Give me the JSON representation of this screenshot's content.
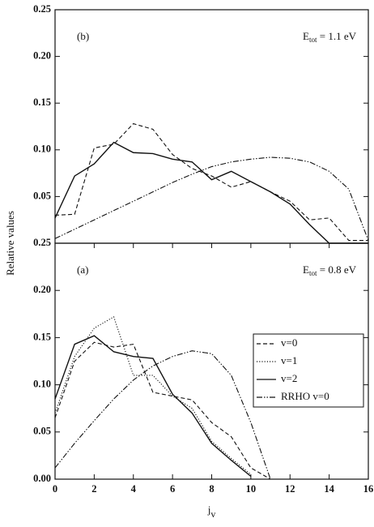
{
  "chart_data": [
    {
      "type": "line",
      "panel": "(b)",
      "annotation": {
        "text": "E",
        "sub": "tot",
        "rest": " = 1.1 eV"
      },
      "x": [
        0,
        1,
        2,
        3,
        4,
        5,
        6,
        7,
        8,
        9,
        10,
        11,
        12,
        13,
        14,
        15,
        16
      ],
      "xlim": [
        0,
        16
      ],
      "ylim": [
        0,
        0.25
      ],
      "yticks": [
        0.05,
        {
          "value": 0.1,
          "label": "0.10"
        },
        0.15,
        {
          "value": 0.2,
          "label": "0.20"
        },
        0.25
      ],
      "series": [
        {
          "name": "v=0",
          "color": "#111",
          "style": "dashed",
          "values": [
            0.03,
            0.031,
            0.102,
            0.106,
            0.128,
            0.122,
            0.095,
            0.08,
            0.072,
            0.06,
            0.066,
            0.055,
            0.045,
            0.025,
            0.027,
            0.003,
            0.003
          ]
        },
        {
          "name": "v=2",
          "color": "#111",
          "style": "solid",
          "values": [
            0.027,
            0.072,
            0.085,
            0.108,
            0.097,
            0.096,
            0.09,
            0.087,
            0.068,
            0.077,
            0.066,
            0.055,
            0.042,
            0.02,
            0.0,
            0.0,
            0.0
          ]
        },
        {
          "name": "RRHO v=0",
          "color": "#111",
          "style": "dashdotdot",
          "values": [
            0.005,
            0.015,
            0.025,
            0.035,
            0.045,
            0.055,
            0.065,
            0.074,
            0.082,
            0.087,
            0.09,
            0.092,
            0.091,
            0.087,
            0.077,
            0.058,
            0.003
          ]
        }
      ]
    },
    {
      "type": "line",
      "panel": "(a)",
      "annotation": {
        "text": "E",
        "sub": "tot",
        "rest": " = 0.8 eV"
      },
      "xlabel": "j",
      "xlabel_sub": "v",
      "ylabel": "Relative values",
      "x": [
        0,
        1,
        2,
        3,
        4,
        5,
        6,
        7,
        8,
        9,
        10,
        11,
        12,
        13,
        14,
        15,
        16
      ],
      "xlim": [
        0,
        16
      ],
      "xticks": [
        0,
        2,
        4,
        6,
        8,
        10,
        12,
        14,
        16
      ],
      "ylim": [
        0,
        0.25
      ],
      "yticks": [
        {
          "value": 0,
          "label": "0.00"
        },
        0.05,
        {
          "value": 0.1,
          "label": "0.10"
        },
        0.15,
        {
          "value": 0.2,
          "label": "0.20"
        },
        0.25
      ],
      "legend": "right",
      "series": [
        {
          "name": "v=0",
          "color": "#111",
          "style": "dashed",
          "values": [
            0.065,
            0.125,
            0.145,
            0.14,
            0.143,
            0.092,
            0.088,
            0.084,
            0.06,
            0.045,
            0.012,
            0.0,
            null,
            null,
            null,
            null,
            null
          ]
        },
        {
          "name": "v=1",
          "color": "#111",
          "style": "dotted",
          "values": [
            0.07,
            0.13,
            0.16,
            0.172,
            0.11,
            0.11,
            0.088,
            0.075,
            0.04,
            0.022,
            0.005,
            null,
            null,
            null,
            null,
            null,
            null
          ]
        },
        {
          "name": "v=2",
          "color": "#111",
          "style": "solid",
          "values": [
            0.085,
            0.143,
            0.152,
            0.135,
            0.13,
            0.128,
            0.09,
            0.07,
            0.038,
            0.02,
            0.003,
            null,
            null,
            null,
            null,
            null,
            null
          ]
        },
        {
          "name": "RRHO v=0",
          "color": "#111",
          "style": "dashdotdot",
          "values": [
            0.012,
            0.038,
            0.062,
            0.085,
            0.105,
            0.12,
            0.13,
            0.136,
            0.133,
            0.11,
            0.06,
            0.0,
            null,
            null,
            null,
            null,
            null
          ]
        }
      ]
    }
  ]
}
